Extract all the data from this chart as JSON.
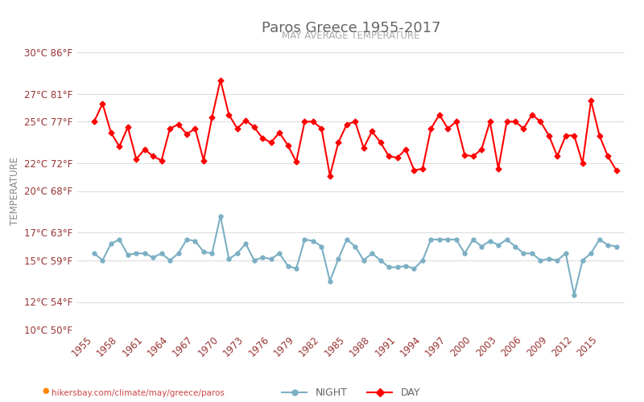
{
  "title": "Paros Greece 1955-2017",
  "subtitle": "MAY AVERAGE TEMPERATURE",
  "ylabel": "TEMPERATURE",
  "xlabel_url": "hikersbay.com/climate/may/greece/paros",
  "background_color": "#ffffff",
  "plot_bg_color": "#ffffff",
  "grid_color": "#dddddd",
  "years": [
    1955,
    1956,
    1957,
    1958,
    1959,
    1960,
    1961,
    1962,
    1963,
    1964,
    1965,
    1966,
    1967,
    1968,
    1969,
    1970,
    1971,
    1972,
    1973,
    1974,
    1975,
    1976,
    1977,
    1978,
    1979,
    1980,
    1981,
    1982,
    1983,
    1984,
    1985,
    1986,
    1987,
    1988,
    1989,
    1990,
    1991,
    1992,
    1993,
    1994,
    1995,
    1996,
    1997,
    1998,
    1999,
    2000,
    2001,
    2002,
    2003,
    2004,
    2005,
    2006,
    2007,
    2008,
    2009,
    2010,
    2011,
    2012,
    2013,
    2014,
    2015,
    2016,
    2017
  ],
  "day_temps": [
    25.0,
    26.3,
    24.2,
    23.2,
    24.6,
    22.3,
    23.0,
    22.5,
    22.2,
    24.5,
    24.8,
    24.1,
    24.5,
    22.2,
    25.3,
    28.0,
    25.5,
    24.5,
    25.1,
    24.6,
    23.8,
    23.5,
    24.2,
    23.3,
    22.1,
    25.0,
    25.0,
    24.5,
    21.1,
    23.5,
    24.8,
    25.0,
    23.1,
    24.3,
    23.5,
    22.5,
    22.4,
    23.0,
    21.5,
    21.6,
    24.5,
    25.5,
    24.5,
    25.0,
    22.6,
    22.5,
    23.0,
    25.0,
    21.6,
    25.0,
    25.0,
    24.5,
    25.5,
    25.0,
    24.0,
    22.5,
    24.0,
    24.0,
    22.0,
    26.5,
    24.0,
    22.5,
    21.5
  ],
  "night_temps": [
    15.5,
    15.0,
    16.2,
    16.5,
    15.4,
    15.5,
    15.5,
    15.2,
    15.5,
    15.0,
    15.5,
    16.5,
    16.4,
    15.6,
    15.5,
    18.2,
    15.1,
    15.5,
    16.2,
    15.0,
    15.2,
    15.1,
    15.5,
    14.6,
    14.4,
    16.5,
    16.4,
    16.0,
    13.5,
    15.1,
    16.5,
    16.0,
    15.0,
    15.5,
    15.0,
    14.5,
    14.5,
    14.6,
    14.4,
    15.0,
    16.5,
    16.5,
    16.5,
    16.5,
    15.5,
    16.5,
    16.0,
    16.4,
    16.1,
    16.5,
    16.0,
    15.5,
    15.5,
    15.0,
    15.1,
    15.0,
    15.5,
    12.5,
    15.0,
    15.5,
    16.5,
    16.1,
    16.0
  ],
  "day_color": "#ff0000",
  "night_color": "#7bafc4",
  "marker_size": 3.5,
  "line_width": 1.5,
  "ylim": [
    10,
    30
  ],
  "yticks_c": [
    10,
    12,
    15,
    17,
    20,
    22,
    25,
    27,
    30
  ],
  "yticks_f": [
    50,
    54,
    59,
    63,
    68,
    72,
    77,
    81,
    86
  ],
  "title_color": "#666666",
  "subtitle_color": "#aaaaaa",
  "ylabel_color": "#888888",
  "tick_color": "#993333",
  "url_color": "#cc4444",
  "legend_night": "NIGHT",
  "legend_day": "DAY",
  "xtick_years": [
    1955,
    1958,
    1961,
    1964,
    1967,
    1970,
    1973,
    1976,
    1979,
    1982,
    1985,
    1988,
    1991,
    1994,
    1997,
    2000,
    2003,
    2006,
    2009,
    2012,
    2015
  ]
}
